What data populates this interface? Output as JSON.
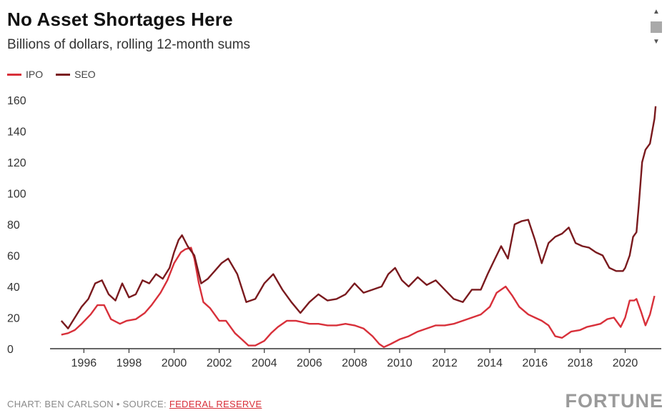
{
  "header": {
    "title": "No Asset Shortages Here",
    "subtitle": "Billions of dollars, rolling 12-month sums"
  },
  "footer": {
    "credit": "CHART: BEN CARLSON • SOURCE: ",
    "source_link": "FEDERAL RESERVE",
    "brand": "FORTUNE"
  },
  "scrollbar": {
    "up_icon": "▲",
    "down_icon": "▼"
  },
  "chart_data": {
    "type": "line",
    "title": "No Asset Shortages Here",
    "subtitle": "Billions of dollars, rolling 12-month sums",
    "xlabel": "",
    "ylabel": "",
    "xlim": [
      1994.5,
      2021.6
    ],
    "ylim": [
      0,
      160
    ],
    "yticks": [
      0,
      20,
      40,
      60,
      80,
      100,
      120,
      140,
      160
    ],
    "xticks": [
      1996,
      1998,
      2000,
      2002,
      2004,
      2006,
      2008,
      2010,
      2012,
      2014,
      2016,
      2018,
      2020
    ],
    "grid": false,
    "legend_position": "top-left",
    "series": [
      {
        "name": "IPO",
        "color": "#d8303a",
        "x": [
          1995.0,
          1995.3,
          1995.6,
          1995.9,
          1996.3,
          1996.6,
          1996.9,
          1997.2,
          1997.6,
          1997.9,
          1998.3,
          1998.7,
          1999.0,
          1999.4,
          1999.7,
          2000.0,
          2000.3,
          2000.5,
          2000.75,
          2000.9,
          2001.1,
          2001.3,
          2001.6,
          2002.0,
          2002.3,
          2002.7,
          2003.0,
          2003.3,
          2003.6,
          2004.0,
          2004.3,
          2004.6,
          2005.0,
          2005.4,
          2005.7,
          2006.0,
          2006.4,
          2006.8,
          2007.2,
          2007.6,
          2008.0,
          2008.4,
          2008.8,
          2009.1,
          2009.3,
          2009.6,
          2010.0,
          2010.4,
          2010.8,
          2011.2,
          2011.6,
          2012.0,
          2012.4,
          2012.8,
          2013.2,
          2013.6,
          2014.0,
          2014.3,
          2014.7,
          2015.0,
          2015.3,
          2015.7,
          2016.0,
          2016.3,
          2016.6,
          2016.9,
          2017.2,
          2017.6,
          2018.0,
          2018.3,
          2018.6,
          2018.9,
          2019.2,
          2019.5,
          2019.8,
          2020.0,
          2020.2,
          2020.4,
          2020.5,
          2020.7,
          2020.9,
          2021.1,
          2021.3
        ],
        "y": [
          9,
          10,
          12,
          16,
          22,
          28,
          28,
          19,
          16,
          18,
          19,
          23,
          28,
          36,
          44,
          55,
          62,
          64,
          65,
          58,
          42,
          30,
          26,
          18,
          18,
          10,
          6,
          2,
          2,
          5,
          10,
          14,
          18,
          18,
          17,
          16,
          16,
          15,
          15,
          16,
          15,
          13,
          8,
          3,
          1,
          3,
          6,
          8,
          11,
          13,
          15,
          15,
          16,
          18,
          20,
          22,
          27,
          36,
          40,
          34,
          27,
          22,
          20,
          18,
          15,
          8,
          7,
          11,
          12,
          14,
          15,
          16,
          19,
          20,
          14,
          20,
          31,
          31,
          32,
          24,
          15,
          22,
          34
        ]
      },
      {
        "name": "SEO",
        "color": "#7a1a1e",
        "x": [
          1995.0,
          1995.3,
          1995.6,
          1995.9,
          1996.2,
          1996.5,
          1996.8,
          1997.1,
          1997.4,
          1997.7,
          1998.0,
          1998.3,
          1998.6,
          1998.9,
          1999.2,
          1999.5,
          1999.8,
          2000.0,
          2000.2,
          2000.35,
          2000.6,
          2000.9,
          2001.2,
          2001.5,
          2001.8,
          2002.1,
          2002.4,
          2002.8,
          2003.2,
          2003.6,
          2004.0,
          2004.4,
          2004.8,
          2005.2,
          2005.6,
          2006.0,
          2006.4,
          2006.8,
          2007.2,
          2007.6,
          2008.0,
          2008.4,
          2008.8,
          2009.2,
          2009.5,
          2009.8,
          2010.1,
          2010.4,
          2010.8,
          2011.2,
          2011.6,
          2012.0,
          2012.4,
          2012.8,
          2013.2,
          2013.6,
          2013.9,
          2014.2,
          2014.5,
          2014.8,
          2015.1,
          2015.4,
          2015.7,
          2016.0,
          2016.3,
          2016.6,
          2016.9,
          2017.2,
          2017.5,
          2017.8,
          2018.1,
          2018.4,
          2018.7,
          2019.0,
          2019.3,
          2019.6,
          2019.9,
          2020.0,
          2020.2,
          2020.35,
          2020.5,
          2020.6,
          2020.75,
          2020.9,
          2021.1,
          2021.3,
          2021.35
        ],
        "y": [
          18,
          13,
          20,
          27,
          32,
          42,
          44,
          35,
          31,
          42,
          33,
          35,
          44,
          42,
          48,
          45,
          52,
          62,
          70,
          73,
          66,
          60,
          42,
          45,
          50,
          55,
          58,
          48,
          30,
          32,
          42,
          48,
          38,
          30,
          23,
          30,
          35,
          31,
          32,
          35,
          42,
          36,
          38,
          40,
          48,
          52,
          44,
          40,
          46,
          41,
          44,
          38,
          32,
          30,
          38,
          38,
          48,
          57,
          66,
          58,
          80,
          82,
          83,
          70,
          55,
          68,
          72,
          74,
          78,
          68,
          66,
          65,
          62,
          60,
          52,
          50,
          50,
          52,
          60,
          72,
          75,
          92,
          120,
          128,
          132,
          148,
          156
        ]
      }
    ]
  }
}
